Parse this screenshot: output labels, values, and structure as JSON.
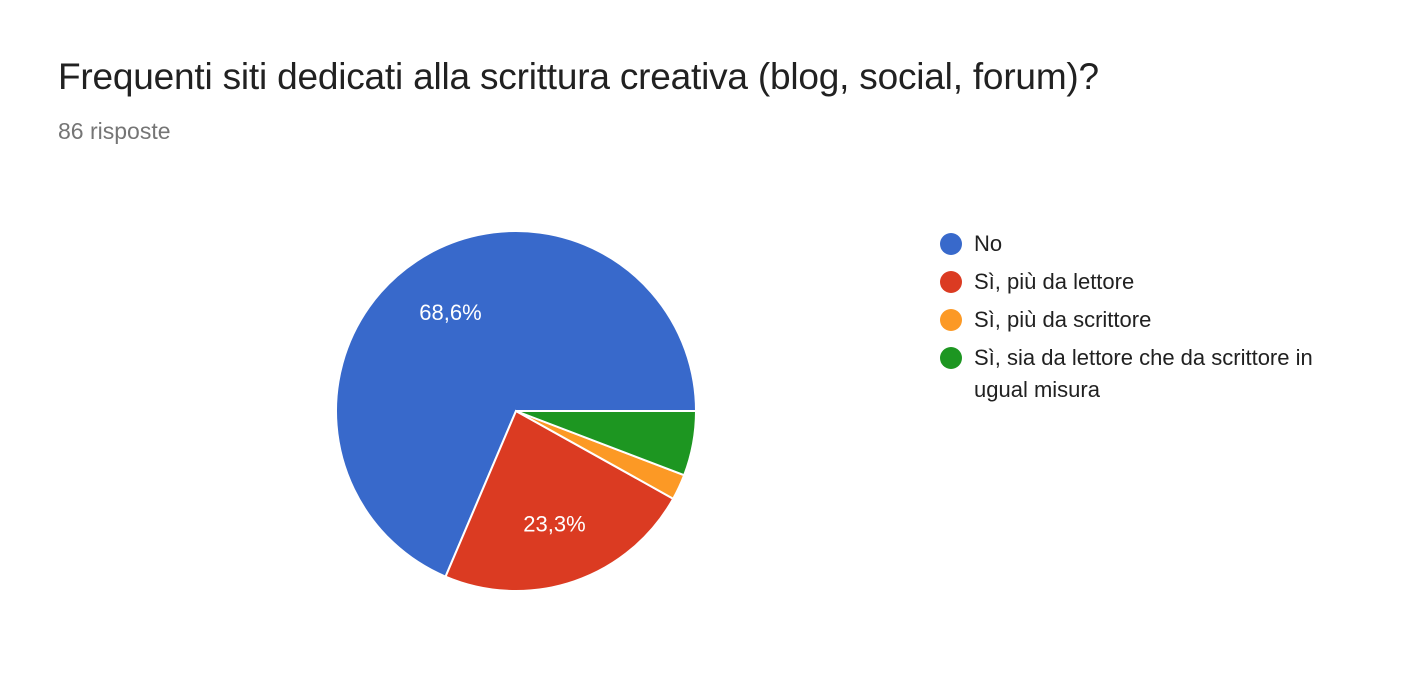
{
  "chart_data": {
    "type": "pie",
    "title": "Frequenti siti dedicati alla scrittura creativa (blog, social, forum)?",
    "subtitle": "86 risposte",
    "categories": [
      "No",
      "Sì, più da lettore",
      "Sì, più da scrittore",
      "Sì, sia da lettore che da scrittore in ugual misura"
    ],
    "values": [
      68.6,
      23.3,
      2.3,
      5.8
    ],
    "data_labels": [
      "68,6%",
      "23,3%",
      "",
      ""
    ],
    "colors": [
      "#3869CB",
      "#DB3B22",
      "#FC9925",
      "#1D9621"
    ],
    "legend_position": "right",
    "start_angle": "3 o'clock, counterclockwise"
  }
}
